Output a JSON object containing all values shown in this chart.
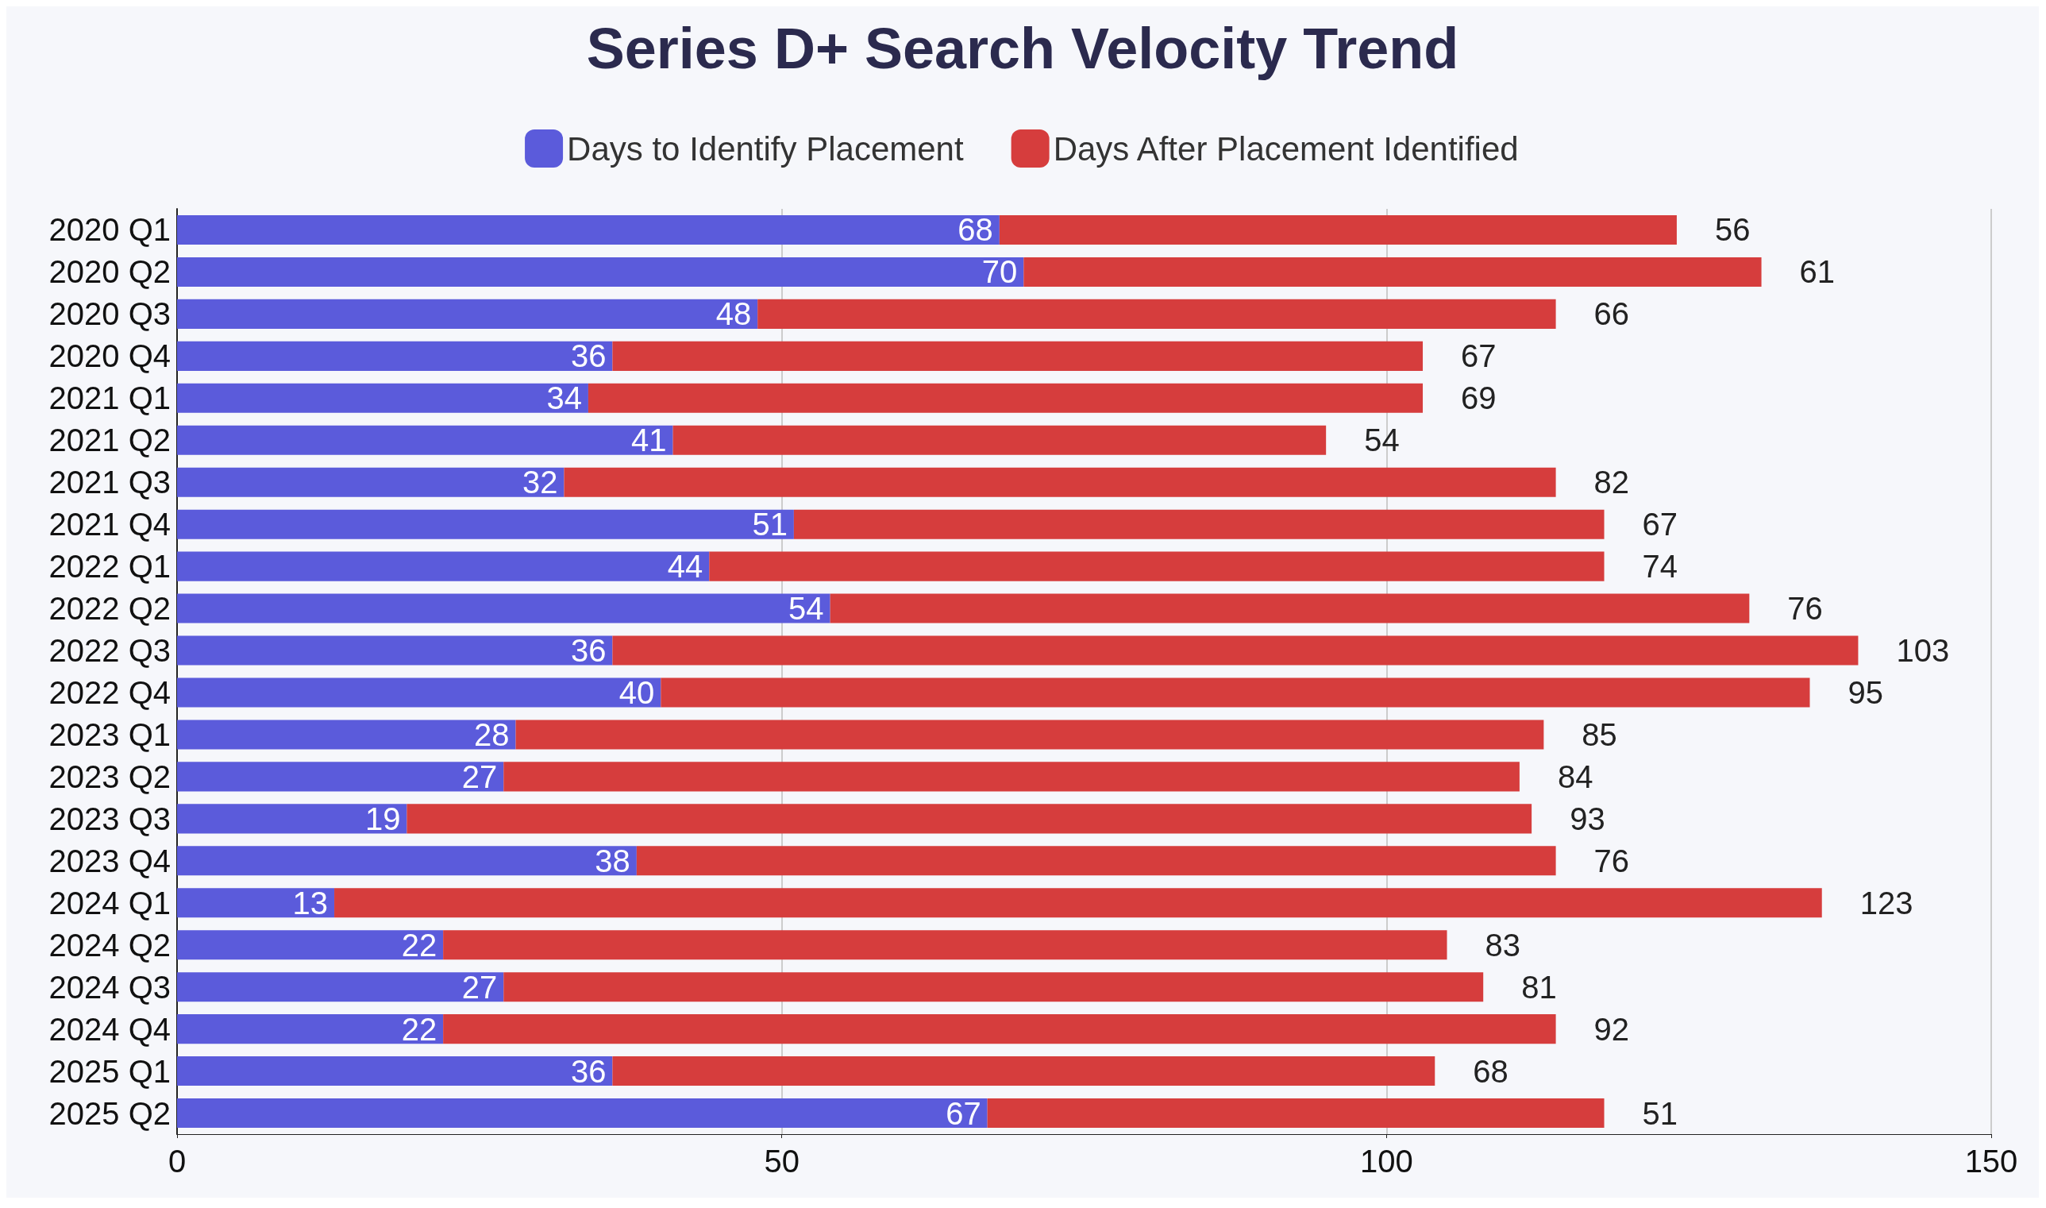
{
  "chart_data": {
    "type": "bar",
    "title": "Series D+ Search Velocity Trend",
    "orientation": "horizontal",
    "stacked": true,
    "data_labels": true,
    "legend": "top",
    "grid": "x",
    "categories": [
      "2020 Q1",
      "2020 Q2",
      "2020 Q3",
      "2020 Q4",
      "2021 Q1",
      "2021 Q2",
      "2021 Q3",
      "2021 Q4",
      "2022 Q1",
      "2022 Q2",
      "2022 Q3",
      "2022 Q4",
      "2023 Q1",
      "2023 Q2",
      "2023 Q3",
      "2023 Q4",
      "2024 Q1",
      "2024 Q2",
      "2024 Q3",
      "2024 Q4",
      "2025 Q1",
      "2025 Q2"
    ],
    "xlim": [
      0,
      150
    ],
    "xticks": [
      0,
      50,
      100,
      150
    ],
    "series": [
      {
        "name": "Days to Identify Placement",
        "color": "#5b5bdb",
        "values": [
          68,
          70,
          48,
          36,
          34,
          41,
          32,
          51,
          44,
          54,
          36,
          40,
          28,
          27,
          19,
          38,
          13,
          22,
          27,
          22,
          36,
          67
        ]
      },
      {
        "name": "Days After Placement Identified",
        "color": "#d63d3d",
        "values": [
          56,
          61,
          66,
          67,
          69,
          54,
          82,
          67,
          74,
          76,
          103,
          95,
          85,
          84,
          93,
          76,
          123,
          83,
          81,
          92,
          68,
          51
        ]
      }
    ]
  }
}
